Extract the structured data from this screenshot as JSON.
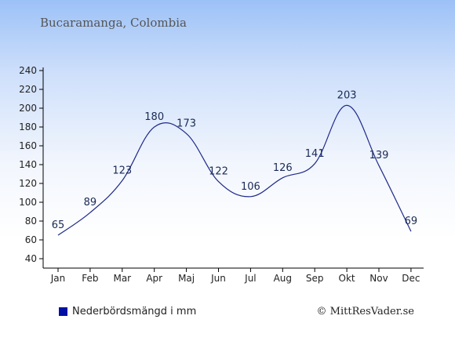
{
  "header": {
    "title": "Bucaramanga, Colombia"
  },
  "legend": {
    "label": "Nederbördsmängd i mm",
    "color": "#0010a5"
  },
  "credit": {
    "text": "© MittResVader.se"
  },
  "colors": {
    "line": "#1f2a8a",
    "axis": "#000000"
  },
  "chart_data": {
    "type": "line",
    "categories": [
      "Jan",
      "Feb",
      "Mar",
      "Apr",
      "Maj",
      "Jun",
      "Jul",
      "Aug",
      "Sep",
      "Okt",
      "Nov",
      "Dec"
    ],
    "series": [
      {
        "name": "Nederbördsmängd i mm",
        "values": [
          65,
          89,
          123,
          180,
          173,
          122,
          106,
          126,
          141,
          203,
          139,
          69
        ]
      }
    ],
    "yticks": [
      40,
      60,
      80,
      100,
      120,
      140,
      160,
      180,
      200,
      220,
      240
    ],
    "ylim": [
      40,
      240
    ],
    "grid": false,
    "legend_position": "bottom-left"
  }
}
